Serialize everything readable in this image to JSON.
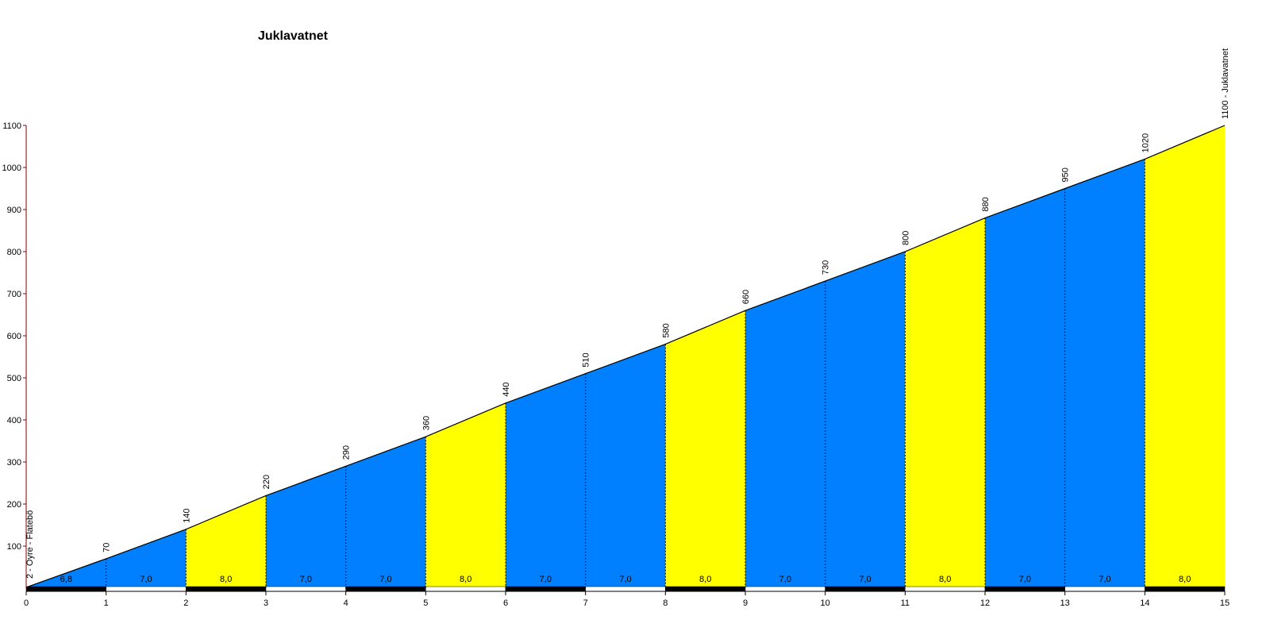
{
  "chart_data": {
    "type": "climb-profile",
    "title": "Juklavatnet",
    "x": [
      0,
      1,
      2,
      3,
      4,
      5,
      6,
      7,
      8,
      9,
      10,
      11,
      12,
      13,
      14,
      15
    ],
    "values": [
      2,
      70,
      140,
      220,
      290,
      360,
      440,
      510,
      580,
      660,
      730,
      800,
      880,
      950,
      1020,
      1100
    ],
    "value_labels": [
      "2 - Oyre - Flatebö",
      "70",
      "140",
      "220",
      "290",
      "360",
      "440",
      "510",
      "580",
      "660",
      "730",
      "800",
      "880",
      "950",
      "1020",
      "1100 - Juklavatnet"
    ],
    "gradients": [
      6.8,
      7.0,
      8.0,
      7.0,
      7.0,
      8.0,
      7.0,
      7.0,
      8.0,
      7.0,
      7.0,
      8.0,
      7.0,
      7.0,
      8.0
    ],
    "gradient_labels": [
      "6,8",
      "7,0",
      "8,0",
      "7,0",
      "7,0",
      "8,0",
      "7,0",
      "7,0",
      "8,0",
      "7,0",
      "7,0",
      "8,0",
      "7,0",
      "7,0",
      "8,0"
    ],
    "segment_colors": [
      "#0080ff",
      "#0080ff",
      "#ffff00",
      "#0080ff",
      "#0080ff",
      "#ffff00",
      "#0080ff",
      "#0080ff",
      "#ffff00",
      "#0080ff",
      "#0080ff",
      "#ffff00",
      "#0080ff",
      "#0080ff",
      "#ffff00"
    ],
    "line_color": "#000000",
    "xlim": [
      0,
      15
    ],
    "ylim": [
      0,
      1100
    ],
    "xticks": [
      0,
      1,
      2,
      3,
      4,
      5,
      6,
      7,
      8,
      9,
      10,
      11,
      12,
      13,
      14,
      15
    ],
    "yticks": [
      100,
      200,
      300,
      400,
      500,
      600,
      700,
      800,
      900,
      1000,
      1100
    ]
  }
}
